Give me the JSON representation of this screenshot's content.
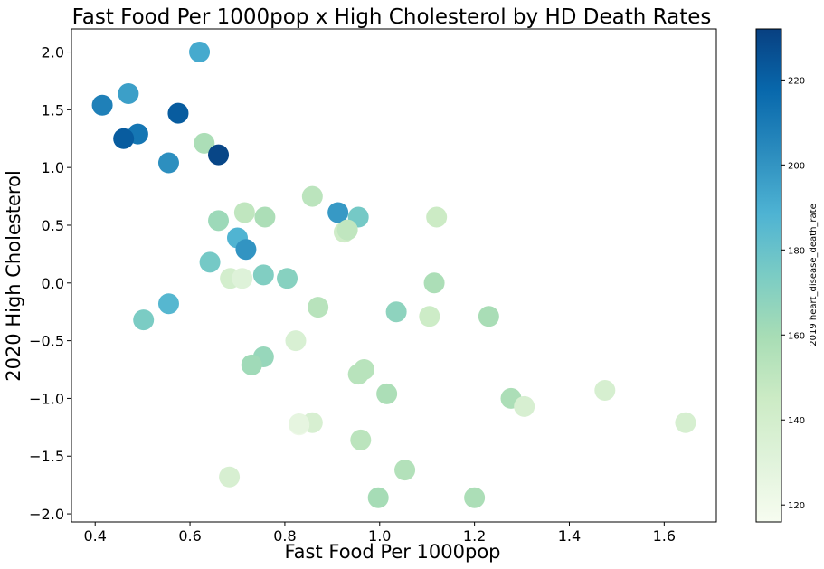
{
  "chart_data": {
    "type": "scatter",
    "title": "Fast Food Per 1000pop x High Cholesterol by HD Death Rates",
    "xlabel": "Fast Food Per 1000pop",
    "ylabel": "2020 High Cholesterol",
    "xlim": [
      0.35,
      1.71
    ],
    "ylim": [
      -2.07,
      2.2
    ],
    "xticks": [
      0.4,
      0.6,
      0.8,
      1.0,
      1.2,
      1.4,
      1.6
    ],
    "xtick_labels": [
      "0.4",
      "0.6",
      "0.8",
      "1.0",
      "1.2",
      "1.4",
      "1.6"
    ],
    "yticks": [
      2.0,
      1.5,
      1.0,
      0.5,
      0.0,
      -0.5,
      -1.0,
      -1.5,
      -2.0
    ],
    "ytick_labels": [
      "2.0",
      "1.5",
      "1.0",
      "0.5",
      "0.0",
      "−0.5",
      "−1.0",
      "−1.5",
      "−2.0"
    ],
    "colorbar": {
      "label": "2019 heart_disease_death_rate",
      "colormap": "GnBu",
      "range": [
        116,
        232
      ],
      "ticks": [
        120,
        140,
        160,
        180,
        200,
        220
      ],
      "tick_labels": [
        "120",
        "140",
        "160",
        "180",
        "200",
        "220"
      ]
    },
    "grid": false,
    "points": [
      {
        "x": 0.62,
        "y": 2.0,
        "c": 192
      },
      {
        "x": 0.415,
        "y": 1.54,
        "c": 208
      },
      {
        "x": 0.47,
        "y": 1.64,
        "c": 196
      },
      {
        "x": 0.575,
        "y": 1.47,
        "c": 222
      },
      {
        "x": 0.49,
        "y": 1.29,
        "c": 212
      },
      {
        "x": 0.46,
        "y": 1.25,
        "c": 222
      },
      {
        "x": 0.63,
        "y": 1.21,
        "c": 158
      },
      {
        "x": 0.66,
        "y": 1.11,
        "c": 230
      },
      {
        "x": 0.555,
        "y": 1.04,
        "c": 202
      },
      {
        "x": 0.858,
        "y": 0.75,
        "c": 152
      },
      {
        "x": 0.715,
        "y": 0.61,
        "c": 150
      },
      {
        "x": 0.66,
        "y": 0.54,
        "c": 163
      },
      {
        "x": 0.758,
        "y": 0.57,
        "c": 158
      },
      {
        "x": 0.912,
        "y": 0.61,
        "c": 198
      },
      {
        "x": 0.955,
        "y": 0.57,
        "c": 176
      },
      {
        "x": 1.12,
        "y": 0.57,
        "c": 145
      },
      {
        "x": 0.925,
        "y": 0.44,
        "c": 143
      },
      {
        "x": 0.932,
        "y": 0.46,
        "c": 150
      },
      {
        "x": 0.7,
        "y": 0.39,
        "c": 188
      },
      {
        "x": 0.718,
        "y": 0.29,
        "c": 200
      },
      {
        "x": 0.642,
        "y": 0.18,
        "c": 176
      },
      {
        "x": 0.685,
        "y": 0.04,
        "c": 140
      },
      {
        "x": 0.71,
        "y": 0.04,
        "c": 132
      },
      {
        "x": 0.755,
        "y": 0.07,
        "c": 172
      },
      {
        "x": 0.805,
        "y": 0.04,
        "c": 170
      },
      {
        "x": 1.115,
        "y": 0.0,
        "c": 158
      },
      {
        "x": 0.555,
        "y": -0.18,
        "c": 186
      },
      {
        "x": 0.502,
        "y": -0.32,
        "c": 174
      },
      {
        "x": 0.87,
        "y": -0.21,
        "c": 153
      },
      {
        "x": 1.035,
        "y": -0.25,
        "c": 168
      },
      {
        "x": 1.105,
        "y": -0.29,
        "c": 144
      },
      {
        "x": 1.23,
        "y": -0.29,
        "c": 159
      },
      {
        "x": 0.823,
        "y": -0.5,
        "c": 136
      },
      {
        "x": 0.755,
        "y": -0.64,
        "c": 165
      },
      {
        "x": 0.73,
        "y": -0.71,
        "c": 162
      },
      {
        "x": 0.967,
        "y": -0.75,
        "c": 153
      },
      {
        "x": 0.955,
        "y": -0.79,
        "c": 153
      },
      {
        "x": 1.015,
        "y": -0.96,
        "c": 158
      },
      {
        "x": 1.475,
        "y": -0.93,
        "c": 138
      },
      {
        "x": 1.277,
        "y": -1.0,
        "c": 158
      },
      {
        "x": 1.305,
        "y": -1.07,
        "c": 137
      },
      {
        "x": 0.858,
        "y": -1.21,
        "c": 137
      },
      {
        "x": 0.83,
        "y": -1.23,
        "c": 122
      },
      {
        "x": 0.83,
        "y": -1.22,
        "c": 127
      },
      {
        "x": 1.645,
        "y": -1.21,
        "c": 138
      },
      {
        "x": 0.96,
        "y": -1.36,
        "c": 152
      },
      {
        "x": 1.053,
        "y": -1.62,
        "c": 155
      },
      {
        "x": 0.683,
        "y": -1.68,
        "c": 137
      },
      {
        "x": 0.997,
        "y": -1.86,
        "c": 160
      },
      {
        "x": 1.2,
        "y": -1.86,
        "c": 158
      }
    ]
  }
}
